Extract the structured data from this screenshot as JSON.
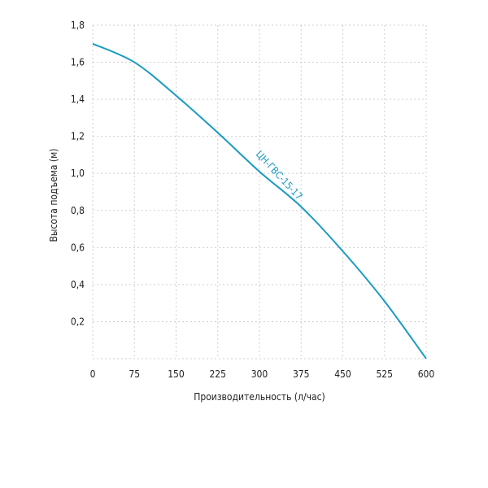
{
  "chart_data": {
    "type": "line",
    "xlabel": "Производительность (л/час)",
    "ylabel": "Высота подъема (м)",
    "xlim": [
      0,
      600
    ],
    "ylim": [
      0,
      1.8
    ],
    "x_ticks": [
      0,
      75,
      150,
      225,
      300,
      375,
      450,
      525,
      600
    ],
    "x_tick_labels": [
      "0",
      "75",
      "150",
      "225",
      "300",
      "375",
      "450",
      "525",
      "600"
    ],
    "y_ticks": [
      0.2,
      0.4,
      0.6,
      0.8,
      1.0,
      1.2,
      1.4,
      1.6,
      1.8
    ],
    "y_tick_labels": [
      "0,2",
      "0,4",
      "0,6",
      "0,8",
      "1,0",
      "1,2",
      "1,4",
      "1,6",
      "1,8"
    ],
    "grid": true,
    "series": [
      {
        "name": "ЦН-ГВС-15-17",
        "color": "#1a9bc2",
        "x": [
          0,
          75,
          150,
          225,
          300,
          375,
          450,
          525,
          600
        ],
        "y": [
          1.7,
          1.6,
          1.42,
          1.22,
          1.01,
          0.82,
          0.58,
          0.31,
          0.0
        ]
      }
    ]
  }
}
